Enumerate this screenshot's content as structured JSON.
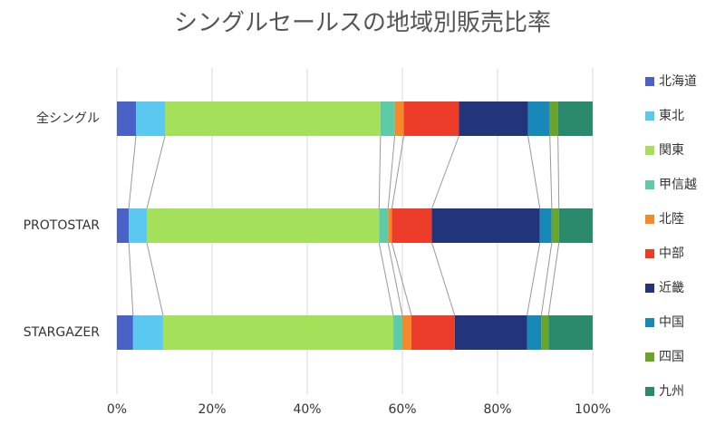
{
  "chart_data": {
    "type": "stacked_bar_horizontal_100",
    "title": "シングルセールスの地域別販売比率",
    "categories": [
      "全シングル",
      "PROTOSTAR",
      "STARGAZER"
    ],
    "series": [
      {
        "name": "北海道",
        "color": "#4a62c8",
        "values": [
          4.0,
          2.5,
          3.4
        ]
      },
      {
        "name": "東北",
        "color": "#5bc8f0",
        "values": [
          6.1,
          3.8,
          6.3
        ]
      },
      {
        "name": "関東",
        "color": "#a4e05a",
        "values": [
          45.3,
          48.8,
          48.4
        ]
      },
      {
        "name": "甲信越",
        "color": "#5ecba8",
        "values": [
          3.0,
          1.9,
          1.9
        ]
      },
      {
        "name": "北陸",
        "color": "#f5882a",
        "values": [
          1.9,
          0.8,
          1.9
        ]
      },
      {
        "name": "中部",
        "color": "#ee3c2a",
        "values": [
          11.6,
          8.4,
          9.1
        ]
      },
      {
        "name": "近畿",
        "color": "#22357a",
        "values": [
          14.5,
          22.7,
          15.2
        ]
      },
      {
        "name": "中国",
        "color": "#1788b8",
        "values": [
          4.6,
          2.5,
          3.0
        ]
      },
      {
        "name": "四国",
        "color": "#6aa52a",
        "values": [
          1.7,
          1.5,
          1.5
        ]
      },
      {
        "name": "九州",
        "color": "#2b8a6b",
        "values": [
          7.3,
          7.1,
          9.3
        ]
      }
    ],
    "xlim": [
      0,
      100
    ],
    "xticks": [
      {
        "value": 0,
        "label": "0%"
      },
      {
        "value": 20,
        "label": "20%"
      },
      {
        "value": 40,
        "label": "40%"
      },
      {
        "value": 60,
        "label": "60%"
      },
      {
        "value": 80,
        "label": "80%"
      },
      {
        "value": 100,
        "label": "100%"
      }
    ],
    "grid": true,
    "legend": "right"
  }
}
